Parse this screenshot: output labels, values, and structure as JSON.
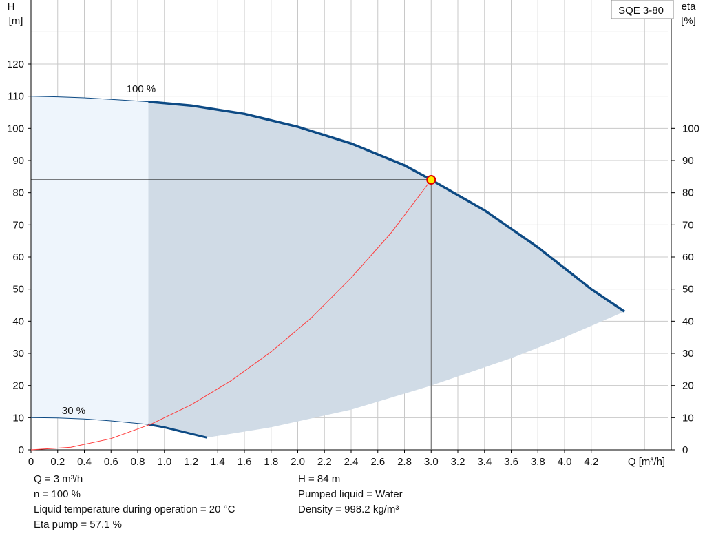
{
  "chart_data": {
    "type": "line",
    "model_label": "SQE 3-80",
    "left_axis": {
      "symbol": "H",
      "unit": "[m]",
      "range": [
        0,
        130
      ],
      "ticks": [
        "0",
        "10",
        "20",
        "30",
        "40",
        "50",
        "60",
        "70",
        "80",
        "90",
        "100",
        "110",
        "120"
      ]
    },
    "right_axis": {
      "symbol": "eta",
      "unit": "[%]",
      "range": [
        0,
        130
      ],
      "ticks": [
        "0",
        "10",
        "20",
        "30",
        "40",
        "50",
        "60",
        "70",
        "80",
        "90",
        "100"
      ]
    },
    "x_axis": {
      "label": "Q [m³/h]",
      "range": [
        0,
        4.8
      ],
      "ticks": [
        "0",
        "0.2",
        "0.4",
        "0.6",
        "0.8",
        "1.0",
        "1.2",
        "1.4",
        "1.6",
        "1.8",
        "2.0",
        "2.2",
        "2.4",
        "2.6",
        "2.8",
        "3.0",
        "3.2",
        "3.4",
        "3.6",
        "3.8",
        "4.0",
        "4.2"
      ]
    },
    "grid": true,
    "curve_labels": {
      "full_speed": "100 %",
      "min_speed": "30 %"
    },
    "series": [
      {
        "id": "curve_100",
        "x": [
          0,
          0.2,
          0.4,
          0.6,
          0.88,
          1.2,
          1.6,
          2.0,
          2.4,
          2.8,
          3.0,
          3.4,
          3.8,
          4.2,
          4.45
        ],
        "y": [
          110,
          109.8,
          109.5,
          109.0,
          108.3,
          107.1,
          104.5,
          100.5,
          95.3,
          88.5,
          84.0,
          74.5,
          63.0,
          50.0,
          43.0
        ]
      },
      {
        "id": "curve_30",
        "x": [
          0,
          0.2,
          0.4,
          0.6,
          0.88,
          1.0,
          1.1,
          1.2,
          1.32
        ],
        "y": [
          10,
          9.9,
          9.6,
          9.0,
          7.9,
          7.0,
          6.0,
          5.0,
          3.8
        ]
      },
      {
        "id": "system_curve",
        "x": [
          0,
          0.3,
          0.6,
          0.9,
          1.2,
          1.5,
          1.8,
          2.1,
          2.4,
          2.7,
          3.0
        ],
        "y": [
          0,
          0.8,
          3.5,
          8.0,
          14.0,
          21.5,
          30.5,
          41.0,
          53.5,
          67.5,
          84.0
        ]
      },
      {
        "id": "area_lower_boundary",
        "x": [
          1.32,
          1.8,
          2.4,
          3.0,
          3.6,
          4.0,
          4.45
        ],
        "y": [
          3.8,
          7.0,
          12.5,
          20.0,
          28.5,
          35.0,
          43.0
        ]
      }
    ],
    "operating_point": {
      "x": 3.0,
      "y": 84
    },
    "colors": {
      "pump_curve": "#0d4a84",
      "system_curve": "#ff3b3b",
      "area_fill": "#d0dbe6",
      "low_flow_fill": "#eef5fc",
      "grid": "#c8c8c8",
      "marker_fill": "#ffee00",
      "marker_stroke": "#e00000"
    }
  },
  "info": {
    "left": [
      "Q = 3 m³/h",
      "n = 100 %",
      "Liquid temperature during operation = 20 °C",
      "Eta pump = 57.1 %"
    ],
    "right": [
      "H = 84 m",
      "Pumped liquid = Water",
      "Density = 998.2 kg/m³"
    ]
  }
}
